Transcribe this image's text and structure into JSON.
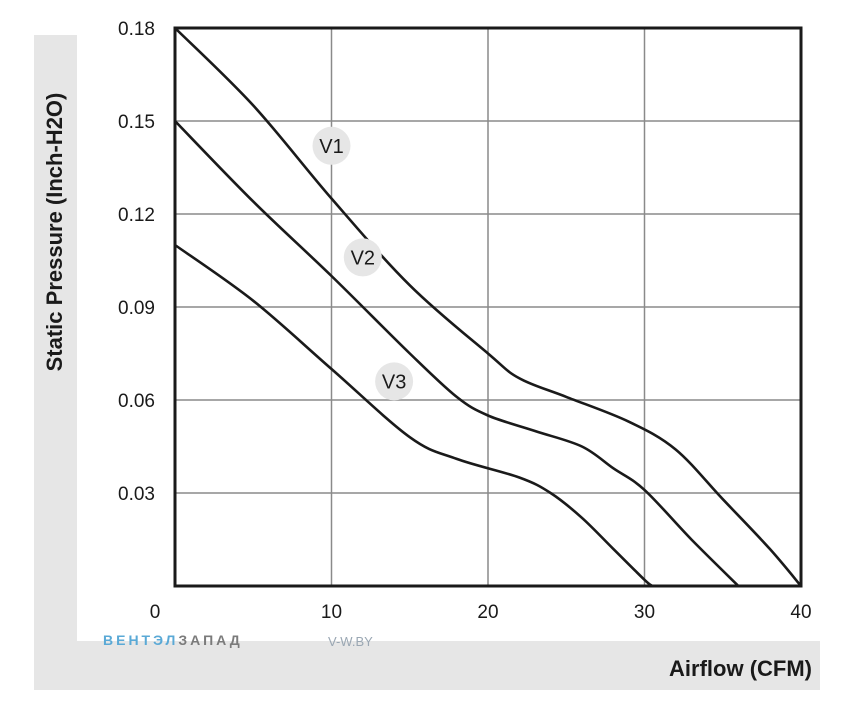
{
  "chart_data": {
    "type": "line",
    "xlabel": "Airflow (CFM)",
    "ylabel": "Static Pressure (Inch-H2O)",
    "xlim": [
      0,
      40
    ],
    "ylim": [
      0,
      0.18
    ],
    "x_ticks": [
      "0",
      "10",
      "20",
      "30",
      "40"
    ],
    "y_ticks": [
      "0.03",
      "0.06",
      "0.09",
      "0.12",
      "0.15",
      "0.18"
    ],
    "grid": true,
    "series": [
      {
        "name": "V1",
        "points": [
          [
            0,
            0.18
          ],
          [
            5,
            0.155
          ],
          [
            10,
            0.125
          ],
          [
            15,
            0.097
          ],
          [
            20,
            0.075
          ],
          [
            22,
            0.067
          ],
          [
            25,
            0.061
          ],
          [
            29,
            0.053
          ],
          [
            32,
            0.044
          ],
          [
            35,
            0.028
          ],
          [
            38,
            0.012
          ],
          [
            40,
            0.0
          ]
        ]
      },
      {
        "name": "V2",
        "points": [
          [
            0,
            0.15
          ],
          [
            5,
            0.124
          ],
          [
            10,
            0.1
          ],
          [
            15,
            0.075
          ],
          [
            18,
            0.061
          ],
          [
            20,
            0.055
          ],
          [
            23,
            0.05
          ],
          [
            26,
            0.045
          ],
          [
            28,
            0.038
          ],
          [
            30,
            0.031
          ],
          [
            33,
            0.015
          ],
          [
            36,
            0.0
          ]
        ]
      },
      {
        "name": "V3",
        "points": [
          [
            0,
            0.11
          ],
          [
            5,
            0.092
          ],
          [
            10,
            0.07
          ],
          [
            15,
            0.048
          ],
          [
            18,
            0.041
          ],
          [
            22,
            0.035
          ],
          [
            24,
            0.03
          ],
          [
            26,
            0.022
          ],
          [
            28,
            0.012
          ],
          [
            30,
            0.002
          ],
          [
            30.5,
            0.0
          ]
        ]
      }
    ],
    "series_labels": [
      {
        "text": "V1",
        "x": 10,
        "y": 0.142
      },
      {
        "text": "V2",
        "x": 12,
        "y": 0.106
      },
      {
        "text": "V3",
        "x": 14,
        "y": 0.066
      }
    ]
  },
  "watermark": {
    "brand_a": "ВЕНТЭЛ",
    "brand_b": "ЗАПАД",
    "url": "V-W.BY"
  }
}
